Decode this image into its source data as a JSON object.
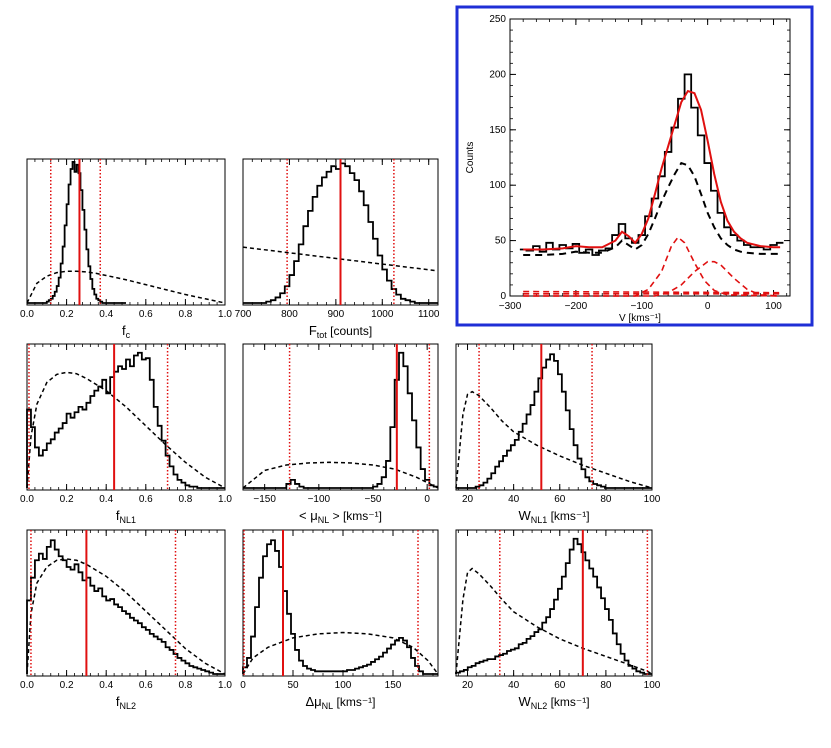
{
  "figure": {
    "inset_border_color": "#1f2fd6",
    "fit_color": "#e01010",
    "hist_color": "#000000"
  },
  "chart_data": [
    {
      "id": "fc",
      "type": "histogram",
      "xlabel": "f",
      "xlabel_sub": "c",
      "xlim": [
        0.0,
        1.0
      ],
      "xticks": [
        0.0,
        0.2,
        0.4,
        0.6,
        0.8,
        1.0
      ],
      "xtick_labels": [
        "0.0",
        "0.2",
        "0.4",
        "0.6",
        "0.8",
        "1.0"
      ],
      "median": 0.265,
      "ci": [
        0.12,
        0.37
      ],
      "hist": {
        "x0": 0.0,
        "dx": 0.01,
        "counts": [
          0,
          0,
          0,
          0,
          0,
          0,
          0,
          0,
          0,
          0,
          0.01,
          0.02,
          0.03,
          0.05,
          0.08,
          0.12,
          0.18,
          0.28,
          0.4,
          0.55,
          0.7,
          0.84,
          0.95,
          1.0,
          0.93,
          0.98,
          0.92,
          0.8,
          0.66,
          0.52,
          0.38,
          0.26,
          0.17,
          0.1,
          0.06,
          0.03,
          0.02,
          0.01,
          0,
          0,
          0,
          0,
          0,
          0,
          0,
          0,
          0,
          0,
          0,
          0
        ]
      },
      "prior": {
        "x": [
          0.0,
          0.05,
          0.1,
          0.15,
          0.2,
          0.25,
          0.3,
          0.35,
          0.4,
          0.5,
          0.6,
          0.7,
          0.8,
          0.9,
          1.0
        ],
        "y": [
          0.0,
          0.14,
          0.19,
          0.215,
          0.225,
          0.225,
          0.22,
          0.21,
          0.195,
          0.165,
          0.13,
          0.095,
          0.06,
          0.03,
          0.0
        ]
      }
    },
    {
      "id": "ftot",
      "type": "histogram",
      "xlabel": "F",
      "xlabel_sub": "tot",
      "xlabel_rest": "[counts]",
      "xlim": [
        700,
        1120
      ],
      "xticks": [
        700,
        800,
        900,
        1000,
        1100
      ],
      "xtick_labels": [
        "700",
        "800",
        "900",
        "1000",
        "1100"
      ],
      "median": 910,
      "ci": [
        795,
        1025
      ],
      "hist": {
        "x0": 700,
        "dx": 10,
        "counts": [
          0,
          0,
          0,
          0,
          0,
          0.01,
          0.02,
          0.04,
          0.07,
          0.12,
          0.2,
          0.3,
          0.42,
          0.55,
          0.66,
          0.76,
          0.84,
          0.9,
          0.94,
          0.98,
          0.96,
          1.0,
          0.98,
          0.93,
          0.88,
          0.8,
          0.7,
          0.58,
          0.46,
          0.34,
          0.24,
          0.16,
          0.1,
          0.06,
          0.03,
          0.02,
          0.01,
          0,
          0,
          0,
          0,
          0
        ]
      },
      "prior": {
        "x": [
          700,
          1120
        ],
        "y": [
          0.4,
          0.23
        ]
      }
    },
    {
      "id": "fnl1",
      "type": "histogram",
      "xlabel": "f",
      "xlabel_sub": "NL1",
      "xlim": [
        0.0,
        1.0
      ],
      "xticks": [
        0.0,
        0.2,
        0.4,
        0.6,
        0.8,
        1.0
      ],
      "xtick_labels": [
        "0.0",
        "0.2",
        "0.4",
        "0.6",
        "0.8",
        "1.0"
      ],
      "median": 0.44,
      "ci": [
        0.01,
        0.71
      ],
      "hist": {
        "x0": 0.0,
        "dx": 0.02,
        "counts": [
          0.58,
          0.45,
          0.3,
          0.24,
          0.28,
          0.33,
          0.36,
          0.41,
          0.44,
          0.48,
          0.55,
          0.52,
          0.56,
          0.6,
          0.58,
          0.63,
          0.68,
          0.72,
          0.75,
          0.8,
          0.7,
          0.82,
          0.86,
          0.9,
          0.88,
          0.95,
          0.9,
          0.98,
          1.0,
          0.95,
          0.96,
          0.8,
          0.6,
          0.46,
          0.35,
          0.24,
          0.16,
          0.1,
          0.06,
          0.04,
          0.02,
          0.01,
          0.01,
          0,
          0,
          0,
          0,
          0,
          0,
          0
        ]
      },
      "prior": {
        "x": [
          0.0,
          0.02,
          0.05,
          0.1,
          0.15,
          0.2,
          0.25,
          0.3,
          0.4,
          0.5,
          0.6,
          0.7,
          0.8,
          0.9,
          1.0
        ],
        "y": [
          0.0,
          0.38,
          0.62,
          0.78,
          0.84,
          0.855,
          0.845,
          0.81,
          0.72,
          0.6,
          0.46,
          0.32,
          0.19,
          0.08,
          0.0
        ]
      }
    },
    {
      "id": "munl",
      "type": "histogram",
      "xlabel": "< μ",
      "xlabel_sub": "NL",
      "xlabel_rest": "> [kms⁻¹]",
      "xlim": [
        -170,
        10
      ],
      "xticks": [
        -150,
        -100,
        -50,
        0
      ],
      "xtick_labels": [
        "−150",
        "−100",
        "−50",
        "0"
      ],
      "median": -28,
      "ci": [
        -127,
        2
      ],
      "hist": {
        "x0": -170,
        "dx": 4,
        "counts": [
          0,
          0,
          0,
          0,
          0,
          0,
          0,
          0,
          0,
          0,
          0.03,
          0.06,
          0.03,
          0.01,
          0,
          0,
          0,
          0,
          0,
          0,
          0,
          0,
          0,
          0,
          0,
          0,
          0,
          0,
          0,
          0,
          0.01,
          0.03,
          0.08,
          0.2,
          0.45,
          0.8,
          1.0,
          0.9,
          0.7,
          0.5,
          0.3,
          0.14,
          0.06,
          0.02,
          0.01
        ]
      },
      "prior": {
        "x": [
          -170,
          -150,
          -130,
          -110,
          -90,
          -70,
          -50,
          -30,
          -10,
          10
        ],
        "y": [
          0.0,
          0.13,
          0.17,
          0.185,
          0.19,
          0.185,
          0.17,
          0.14,
          0.08,
          0.0
        ]
      }
    },
    {
      "id": "wnl1",
      "type": "histogram",
      "xlabel": "W",
      "xlabel_sub": "NL1",
      "xlabel_rest": "[kms⁻¹]",
      "xlim": [
        15,
        100
      ],
      "xticks": [
        20,
        40,
        60,
        80,
        100
      ],
      "xtick_labels": [
        "20",
        "40",
        "60",
        "80",
        "100"
      ],
      "median": 52,
      "ci": [
        25,
        74
      ],
      "hist": {
        "x0": 15,
        "dx": 1.7,
        "counts": [
          0,
          0,
          0,
          0,
          0,
          0.01,
          0.02,
          0.04,
          0.07,
          0.11,
          0.16,
          0.2,
          0.24,
          0.28,
          0.32,
          0.36,
          0.42,
          0.48,
          0.55,
          0.62,
          0.72,
          0.82,
          0.9,
          0.96,
          1.0,
          0.95,
          0.85,
          0.72,
          0.58,
          0.44,
          0.32,
          0.22,
          0.14,
          0.08,
          0.05,
          0.03,
          0.02,
          0.01,
          0,
          0,
          0,
          0,
          0,
          0,
          0,
          0,
          0,
          0,
          0,
          0
        ]
      },
      "prior": {
        "x": [
          15,
          18,
          20,
          22,
          25,
          30,
          35,
          40,
          50,
          60,
          70,
          80,
          90,
          100
        ],
        "y": [
          0.0,
          0.55,
          0.7,
          0.72,
          0.69,
          0.6,
          0.5,
          0.42,
          0.32,
          0.24,
          0.17,
          0.11,
          0.05,
          0.0
        ]
      }
    },
    {
      "id": "fnl2",
      "type": "histogram",
      "xlabel": "f",
      "xlabel_sub": "NL2",
      "xlabel_rest": "",
      "xlim": [
        0.0,
        1.0
      ],
      "xticks": [
        0.0,
        0.2,
        0.4,
        0.6,
        0.8,
        1.0
      ],
      "xtick_labels": [
        "0.0",
        "0.2",
        "0.4",
        "0.6",
        "0.8",
        "1.0"
      ],
      "median": 0.3,
      "ci": [
        0.02,
        0.75
      ],
      "hist": {
        "x0": 0.0,
        "dx": 0.02,
        "counts": [
          0.55,
          0.72,
          0.85,
          0.9,
          0.86,
          0.95,
          1.0,
          0.93,
          0.88,
          0.85,
          0.8,
          0.78,
          0.82,
          0.76,
          0.7,
          0.72,
          0.66,
          0.62,
          0.64,
          0.58,
          0.55,
          0.56,
          0.52,
          0.5,
          0.47,
          0.45,
          0.42,
          0.4,
          0.38,
          0.35,
          0.33,
          0.3,
          0.28,
          0.26,
          0.24,
          0.2,
          0.18,
          0.15,
          0.12,
          0.1,
          0.08,
          0.06,
          0.05,
          0.04,
          0.03,
          0.02,
          0.01,
          0,
          0,
          0
        ]
      },
      "prior": {
        "x": [
          0.0,
          0.02,
          0.05,
          0.1,
          0.15,
          0.2,
          0.25,
          0.3,
          0.4,
          0.5,
          0.6,
          0.7,
          0.8,
          0.9,
          1.0
        ],
        "y": [
          0.0,
          0.45,
          0.68,
          0.8,
          0.85,
          0.86,
          0.85,
          0.82,
          0.73,
          0.61,
          0.47,
          0.33,
          0.19,
          0.08,
          0.0
        ]
      }
    },
    {
      "id": "dmunl",
      "type": "histogram",
      "xlabel": "Δμ",
      "xlabel_sub": "NL",
      "xlabel_rest": "[kms⁻¹]",
      "xlim": [
        0,
        195
      ],
      "xticks": [
        0,
        50,
        100,
        150
      ],
      "xtick_labels": [
        "0",
        "50",
        "100",
        "150"
      ],
      "median": 40,
      "ci": [
        0,
        175
      ],
      "hist": {
        "x0": 0,
        "dx": 4,
        "counts": [
          0.05,
          0.12,
          0.28,
          0.5,
          0.72,
          0.88,
          0.97,
          1.0,
          0.92,
          0.8,
          0.62,
          0.45,
          0.3,
          0.18,
          0.1,
          0.06,
          0.04,
          0.03,
          0.02,
          0.02,
          0.02,
          0.02,
          0.02,
          0.02,
          0.02,
          0.02,
          0.03,
          0.03,
          0.04,
          0.05,
          0.06,
          0.07,
          0.09,
          0.11,
          0.13,
          0.16,
          0.19,
          0.22,
          0.25,
          0.27,
          0.25,
          0.2,
          0.12,
          0.06,
          0.02,
          0,
          0,
          0,
          0
        ]
      },
      "prior": {
        "x": [
          0,
          10,
          25,
          50,
          75,
          100,
          125,
          150,
          170,
          185,
          195
        ],
        "y": [
          0.0,
          0.12,
          0.2,
          0.27,
          0.3,
          0.31,
          0.3,
          0.27,
          0.2,
          0.1,
          0.0
        ]
      }
    },
    {
      "id": "wnl2",
      "type": "histogram",
      "xlabel": "W",
      "xlabel_sub": "NL2",
      "xlabel_rest": "[kms⁻¹]",
      "xlim": [
        15,
        100
      ],
      "xticks": [
        20,
        40,
        60,
        80,
        100
      ],
      "xtick_labels": [
        "20",
        "40",
        "60",
        "80",
        "100"
      ],
      "median": 70,
      "ci": [
        34,
        98
      ],
      "hist": {
        "x0": 15,
        "dx": 1.7,
        "counts": [
          0.01,
          0.02,
          0.03,
          0.05,
          0.06,
          0.08,
          0.09,
          0.1,
          0.11,
          0.11,
          0.13,
          0.14,
          0.15,
          0.17,
          0.18,
          0.19,
          0.22,
          0.23,
          0.26,
          0.28,
          0.31,
          0.33,
          0.38,
          0.42,
          0.48,
          0.55,
          0.63,
          0.72,
          0.82,
          0.92,
          1.0,
          0.96,
          0.9,
          0.84,
          0.78,
          0.72,
          0.64,
          0.56,
          0.48,
          0.4,
          0.3,
          0.22,
          0.15,
          0.1,
          0.06,
          0.04,
          0.02,
          0.01,
          0,
          0
        ]
      },
      "prior": {
        "x": [
          15,
          18,
          20,
          22,
          25,
          30,
          35,
          40,
          50,
          60,
          70,
          80,
          90,
          98,
          100
        ],
        "y": [
          0.0,
          0.55,
          0.75,
          0.78,
          0.74,
          0.65,
          0.55,
          0.46,
          0.35,
          0.26,
          0.19,
          0.13,
          0.07,
          0.02,
          0.0
        ]
      }
    },
    {
      "id": "spectrum",
      "type": "line",
      "xlabel": "V",
      "xlabel_rest": "[kms⁻¹]",
      "ylabel": "Counts",
      "xlim": [
        -300,
        125
      ],
      "ylim": [
        0,
        250
      ],
      "xticks": [
        -300,
        -200,
        -100,
        0,
        100
      ],
      "xtick_labels": [
        "−300",
        "−200",
        "−100",
        "0",
        "100"
      ],
      "yticks": [
        0,
        50,
        100,
        150,
        200,
        250
      ],
      "ytick_labels": [
        "0",
        "50",
        "100",
        "150",
        "200",
        "250"
      ],
      "data": {
        "x": [
          -280,
          -270,
          -260,
          -250,
          -240,
          -230,
          -220,
          -210,
          -200,
          -190,
          -180,
          -170,
          -160,
          -150,
          -140,
          -130,
          -120,
          -110,
          -100,
          -90,
          -80,
          -70,
          -60,
          -50,
          -40,
          -30,
          -20,
          -10,
          0,
          10,
          20,
          30,
          40,
          50,
          60,
          70,
          80,
          90,
          100,
          110
        ],
        "y": [
          42,
          41,
          45,
          40,
          48,
          42,
          46,
          43,
          47,
          39,
          42,
          37,
          41,
          43,
          55,
          65,
          52,
          48,
          55,
          72,
          88,
          108,
          130,
          152,
          178,
          200,
          170,
          145,
          120,
          95,
          75,
          62,
          55,
          50,
          46,
          44,
          44,
          42,
          46,
          48
        ]
      },
      "fit": {
        "x": [
          -280,
          -250,
          -220,
          -200,
          -180,
          -160,
          -140,
          -130,
          -120,
          -110,
          -100,
          -90,
          -80,
          -70,
          -60,
          -50,
          -40,
          -30,
          -20,
          -10,
          0,
          10,
          20,
          30,
          40,
          50,
          60,
          80,
          100,
          110
        ],
        "y": [
          42,
          42,
          43,
          45,
          44,
          44,
          50,
          58,
          54,
          48,
          56,
          70,
          92,
          115,
          135,
          155,
          175,
          185,
          183,
          168,
          140,
          110,
          85,
          68,
          58,
          52,
          48,
          45,
          44,
          44
        ]
      },
      "total_model": {
        "x": [
          -280,
          -250,
          -220,
          -200,
          -180,
          -160,
          -140,
          -130,
          -120,
          -110,
          -100,
          -90,
          -80,
          -70,
          -60,
          -50,
          -40,
          -30,
          -20,
          -10,
          0,
          10,
          20,
          30,
          40,
          50,
          60,
          80,
          100,
          110
        ],
        "y": [
          37,
          37,
          38,
          40,
          39,
          39,
          44,
          50,
          46,
          42,
          46,
          56,
          70,
          85,
          98,
          110,
          120,
          118,
          108,
          92,
          75,
          62,
          52,
          46,
          42,
          40,
          39,
          38,
          38,
          38
        ]
      },
      "components": [
        {
          "x": [
            -280,
            -110,
            -90,
            -70,
            -55,
            -45,
            -35,
            -20,
            -5,
            10,
            30,
            110
          ],
          "y": [
            0,
            0,
            6,
            22,
            45,
            53,
            48,
            30,
            14,
            5,
            1,
            0
          ]
        },
        {
          "x": [
            -280,
            -80,
            -60,
            -40,
            -20,
            0,
            10,
            20,
            40,
            60,
            80,
            110
          ],
          "y": [
            0,
            0,
            3,
            10,
            22,
            31,
            31,
            28,
            16,
            6,
            1,
            0
          ]
        },
        {
          "x": [
            -280,
            110
          ],
          "y": [
            4,
            3
          ]
        },
        {
          "x": [
            -280,
            110
          ],
          "y": [
            2,
            2
          ]
        }
      ]
    }
  ]
}
